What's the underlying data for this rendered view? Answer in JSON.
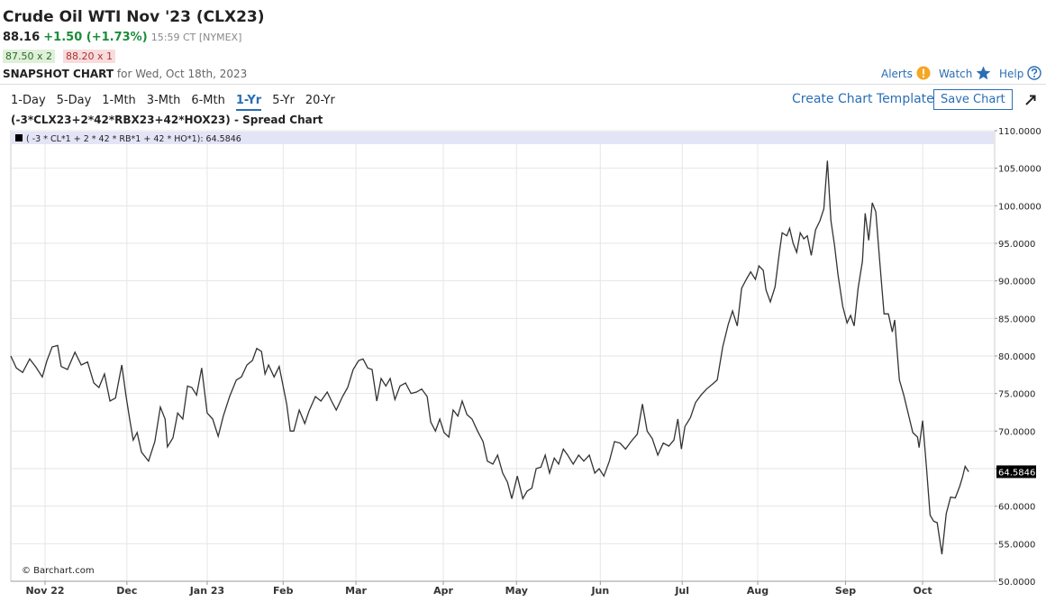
{
  "header": {
    "title": "Crude Oil WTI Nov '23 (CLX23)",
    "last": "88.16",
    "change": "+1.50 (+1.73%)",
    "time": "15:59 CT [NYMEX]",
    "bid": "87.50 x 2",
    "ask": "88.20 x 1",
    "snapshot": "SNAPSHOT CHART",
    "date": "for Wed, Oct 18th, 2023",
    "links": [
      "Alerts",
      "Watch",
      "Help"
    ]
  },
  "toolbar": {
    "periods": [
      "1-Day",
      "5-Day",
      "1-Mth",
      "3-Mth",
      "6-Mth",
      "1-Yr",
      "5-Yr",
      "20-Yr"
    ],
    "template": "Create Chart Template",
    "save": "Save Chart"
  },
  "chart_data": {
    "type": "line",
    "title": "(-3*CLX23+2*42*RBX23+42*HOX23) - Spread Chart",
    "source": "© Barchart.com",
    "x": [
      0,
      1.4,
      3.0,
      4.8,
      6.4,
      8.0,
      9.2,
      10.5,
      11.9,
      12.8,
      14.4,
      16.3,
      17.9,
      19.5,
      21.1,
      22.4,
      23.8,
      25.2,
      26.6,
      28.2,
      29.3,
      30.2,
      31.1,
      32.1,
      33.2,
      35.0,
      36.6,
      38.0,
      39.2,
      39.8,
      41.2,
      42.4,
      43.7,
      44.9,
      46.0,
      47.2,
      48.5,
      49.9,
      51.3,
      52.7,
      54.0,
      55.6,
      57.3,
      58.6,
      60.0,
      61.4,
      62.5,
      63.7,
      64.6,
      65.5,
      66.9,
      68.2,
      70.1,
      71.0,
      71.9,
      73.3,
      74.7,
      75.8,
      77.4,
      78.8,
      80.4,
      81.5,
      82.7,
      84.3,
      85.6,
      87.0,
      88.4,
      89.5,
      90.7,
      91.8,
      93.0,
      94.1,
      95.3,
      96.4,
      97.6,
      98.9,
      100.3,
      101.7,
      103.1,
      104.4,
      105.8,
      106.7,
      107.9,
      109.0,
      110.1,
      111.3,
      112.4,
      113.6,
      114.7,
      115.9,
      117.2,
      118.6,
      120.0,
      121.1,
      122.5,
      123.7,
      125.0,
      126.2,
      127.3,
      128.7,
      130.1,
      131.2,
      132.4,
      133.5,
      134.7,
      135.8,
      136.9,
      138.1,
      139.2,
      140.4,
      141.5,
      142.9,
      144.3,
      145.6,
      147.0,
      148.4,
      149.5,
      150.7,
      152.1,
      153.4,
      154.8,
      156.2,
      157.6,
      159.2,
      160.5,
      161.7,
      163.0,
      164.4,
      165.8,
      167.2,
      168.5,
      169.5,
      170.4,
      171.3,
      172.7,
      174.0,
      175.4,
      176.8,
      178.2,
      179.5,
      180.9,
      182.3,
      183.4,
      184.6,
      185.7,
      186.9,
      188.0,
      189.2,
      190.1,
      191.2,
      191.9,
      193.0,
      194.2,
      195.3,
      196.0,
      197.2,
      197.9,
      198.8,
      199.7,
      200.6,
      201.5,
      202.4,
      203.4,
      204.5,
      205.6,
      206.6,
      207.5,
      208.4,
      209.3,
      210.2,
      211.4,
      212.5,
      213.4,
      214.3,
      215.3,
      216.4,
      217.1,
      218.0,
      218.9,
      219.8,
      220.8,
      221.9,
      223.0,
      224.0,
      224.6,
      225.8,
      226.9,
      228.1,
      229.2,
      230.4,
      230.8,
      231.7,
      232.7,
      233.6,
      234.5,
      235.4,
      236.6,
      237.7,
      238.8,
      240.0,
      241.1,
      241.8,
      242.5,
      243.4
    ],
    "series": [
      {
        "name": "( -3 * CL*1 + 2 * 42 * RB*1 + 42 * HO*1): 64.5846",
        "color": "#333333",
        "values": [
          80.0,
          78.4,
          77.8,
          79.6,
          78.5,
          77.2,
          79.4,
          81.2,
          81.4,
          78.6,
          78.2,
          80.5,
          78.8,
          79.2,
          76.4,
          75.8,
          77.6,
          74.0,
          74.4,
          78.8,
          74.6,
          71.6,
          68.8,
          69.8,
          67.2,
          66.0,
          68.6,
          73.2,
          71.6,
          67.9,
          69.1,
          72.4,
          71.6,
          76.0,
          75.8,
          74.8,
          78.4,
          72.4,
          71.6,
          69.3,
          72.0,
          74.6,
          76.8,
          77.2,
          78.8,
          79.4,
          81.0,
          80.6,
          77.6,
          78.8,
          77.2,
          78.6,
          73.6,
          70.0,
          70.0,
          72.8,
          71.0,
          72.7,
          74.6,
          74.0,
          75.2,
          74.0,
          72.8,
          74.6,
          75.8,
          78.2,
          79.4,
          79.6,
          78.4,
          78.2,
          74.0,
          77.0,
          76.0,
          77.0,
          74.2,
          76.0,
          76.4,
          75.0,
          75.2,
          75.6,
          74.6,
          71.2,
          70.0,
          71.6,
          69.8,
          69.2,
          72.8,
          72.0,
          74.0,
          72.2,
          71.6,
          70.0,
          68.6,
          66.0,
          65.6,
          66.8,
          64.4,
          63.2,
          61.0,
          64.0,
          61.0,
          62.0,
          62.4,
          65.0,
          65.2,
          66.8,
          64.4,
          66.4,
          65.6,
          67.6,
          66.8,
          65.6,
          66.8,
          66.0,
          66.8,
          64.4,
          65.0,
          64.0,
          66.0,
          68.6,
          68.4,
          67.6,
          68.6,
          69.6,
          73.6,
          70.0,
          69.0,
          66.8,
          68.4,
          68.0,
          68.8,
          71.6,
          67.6,
          70.6,
          71.8,
          73.8,
          74.8,
          75.6,
          76.2,
          76.8,
          81.2,
          84.2,
          86.0,
          84.0,
          89.0,
          90.2,
          91.2,
          90.2,
          92.0,
          91.4,
          88.8,
          87.2,
          89.2,
          93.8,
          96.4,
          96.0,
          97.0,
          95.0,
          93.8,
          96.4,
          95.6,
          96.0,
          93.4,
          96.8,
          98.0,
          99.6,
          106.0,
          98.0,
          94.8,
          90.8,
          86.6,
          84.4,
          85.4,
          84.0,
          89.0,
          92.6,
          99.0,
          95.4,
          100.4,
          99.2,
          92.6,
          85.6,
          85.6,
          83.2,
          84.8,
          76.8,
          74.8,
          72.2,
          69.8,
          69.2,
          67.8,
          71.4,
          65.0,
          58.8,
          58.0,
          57.8,
          53.6,
          59.0,
          61.2,
          61.1,
          62.6,
          63.8,
          65.3,
          64.5846
        ]
      }
    ],
    "xlim": [
      0,
      250
    ],
    "xticks": [
      {
        "value": 8.7,
        "label": "Nov 22"
      },
      {
        "value": 29.5,
        "label": "Dec"
      },
      {
        "value": 49.9,
        "label": "Jan 23"
      },
      {
        "value": 69.2,
        "label": "Feb"
      },
      {
        "value": 87.7,
        "label": "Mar"
      },
      {
        "value": 109.9,
        "label": "Apr"
      },
      {
        "value": 128.5,
        "label": "May"
      },
      {
        "value": 149.8,
        "label": "Jun"
      },
      {
        "value": 170.6,
        "label": "Jul"
      },
      {
        "value": 189.8,
        "label": "Aug"
      },
      {
        "value": 212.1,
        "label": "Sep"
      },
      {
        "value": 231.7,
        "label": "Oct"
      }
    ],
    "ylim": [
      50,
      110
    ],
    "yticks": [
      {
        "value": 50,
        "label": "50.0000"
      },
      {
        "value": 55,
        "label": "55.0000"
      },
      {
        "value": 60,
        "label": "60.0000"
      },
      {
        "value": 65,
        "label": "65.0000"
      },
      {
        "value": 70,
        "label": "70.0000"
      },
      {
        "value": 75,
        "label": "75.0000"
      },
      {
        "value": 80,
        "label": "80.0000"
      },
      {
        "value": 85,
        "label": "85.0000"
      },
      {
        "value": 90,
        "label": "90.0000"
      },
      {
        "value": 95,
        "label": "95.0000"
      },
      {
        "value": 100,
        "label": "100.0000"
      },
      {
        "value": 105,
        "label": "105.0000"
      },
      {
        "value": 110,
        "label": "110.0000"
      }
    ],
    "grid": true
  }
}
